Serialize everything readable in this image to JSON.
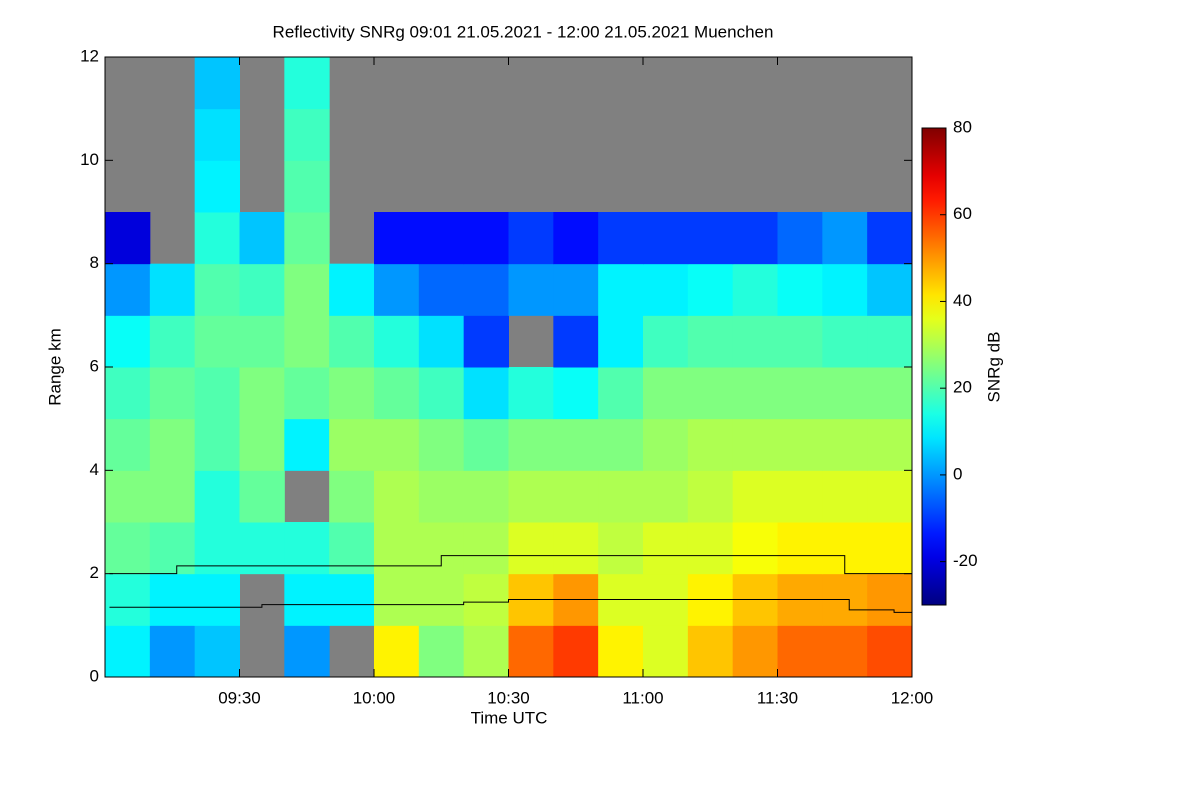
{
  "chart_data": {
    "type": "heatmap",
    "title": "Reflectivity SNRg   09:01 21.05.2021 - 12:00 21.05.2021 Muenchen",
    "xlabel": "Time UTC",
    "ylabel": "Range km",
    "xlim": [
      540,
      720
    ],
    "ylim": [
      0,
      12
    ],
    "xticks": [
      {
        "value": 570,
        "label": "09:30"
      },
      {
        "value": 600,
        "label": "10:00"
      },
      {
        "value": 630,
        "label": "10:30"
      },
      {
        "value": 660,
        "label": "11:00"
      },
      {
        "value": 690,
        "label": "11:30"
      },
      {
        "value": 720,
        "label": "12:00"
      }
    ],
    "yticks": [
      0,
      2,
      4,
      6,
      8,
      10,
      12
    ],
    "xbins": [
      540,
      550,
      560,
      570,
      580,
      590,
      600,
      610,
      620,
      630,
      640,
      650,
      660,
      670,
      680,
      690,
      700,
      710,
      720
    ],
    "ybins": [
      0,
      1,
      2,
      3,
      4,
      5,
      6,
      7,
      8,
      9,
      10,
      11,
      12
    ],
    "z": [
      [
        10,
        0,
        5,
        null,
        0,
        null,
        40,
        25,
        30,
        55,
        60,
        40,
        35,
        45,
        50,
        55,
        55,
        58
      ],
      [
        15,
        10,
        10,
        null,
        10,
        10,
        30,
        30,
        32,
        45,
        50,
        35,
        35,
        40,
        45,
        48,
        48,
        50
      ],
      [
        22,
        20,
        15,
        15,
        15,
        20,
        30,
        30,
        30,
        35,
        35,
        32,
        35,
        35,
        38,
        40,
        40,
        40
      ],
      [
        25,
        25,
        15,
        22,
        null,
        25,
        30,
        28,
        28,
        30,
        30,
        30,
        30,
        32,
        35,
        35,
        35,
        35
      ],
      [
        22,
        25,
        20,
        25,
        10,
        28,
        28,
        25,
        22,
        25,
        25,
        25,
        28,
        30,
        30,
        30,
        30,
        30
      ],
      [
        18,
        22,
        20,
        25,
        22,
        25,
        22,
        18,
        8,
        15,
        12,
        20,
        25,
        25,
        25,
        25,
        25,
        25
      ],
      [
        12,
        18,
        22,
        22,
        25,
        20,
        15,
        8,
        -10,
        null,
        -10,
        10,
        18,
        20,
        20,
        20,
        18,
        18
      ],
      [
        0,
        8,
        20,
        18,
        25,
        10,
        0,
        -5,
        -5,
        0,
        0,
        10,
        10,
        12,
        15,
        12,
        10,
        5
      ],
      [
        -20,
        null,
        15,
        5,
        22,
        null,
        -15,
        -15,
        -15,
        -10,
        -15,
        -10,
        -10,
        -10,
        -10,
        -5,
        0,
        -10
      ],
      [
        null,
        null,
        10,
        null,
        20,
        null,
        null,
        null,
        null,
        null,
        null,
        null,
        null,
        null,
        null,
        null,
        null,
        null
      ],
      [
        null,
        null,
        8,
        null,
        18,
        null,
        null,
        null,
        null,
        null,
        null,
        null,
        null,
        null,
        null,
        null,
        null,
        null
      ],
      [
        null,
        null,
        5,
        null,
        15,
        null,
        null,
        null,
        null,
        null,
        null,
        null,
        null,
        null,
        null,
        null,
        null,
        null
      ]
    ],
    "colormap": "jet",
    "na_color": "#808080",
    "colorbar": {
      "label": "SNRg dB",
      "lim": [
        -30,
        80
      ],
      "ticks": [
        -20,
        0,
        20,
        40,
        60,
        80
      ]
    },
    "lines": [
      {
        "color": "#000000",
        "x": [
          541,
          556,
          556,
          615,
          615,
          705,
          705,
          720
        ],
        "values": [
          2.0,
          2.0,
          2.15,
          2.15,
          2.35,
          2.35,
          2.0,
          2.0
        ]
      },
      {
        "color": "#000000",
        "x": [
          541,
          575,
          575,
          620,
          620,
          630,
          630,
          706,
          706,
          716,
          716,
          720
        ],
        "values": [
          1.35,
          1.35,
          1.4,
          1.4,
          1.45,
          1.45,
          1.5,
          1.5,
          1.3,
          1.3,
          1.25,
          1.25
        ]
      }
    ]
  }
}
